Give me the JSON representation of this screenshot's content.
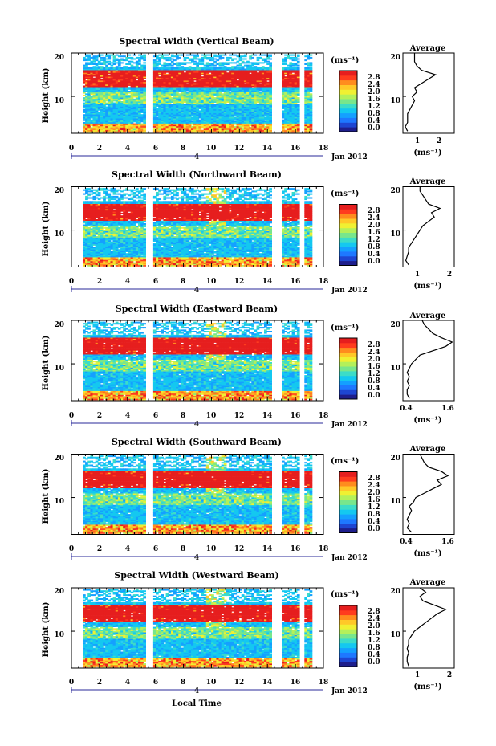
{
  "colors": {
    "scale": [
      "#1e1e8c",
      "#1e46d2",
      "#1e78ff",
      "#14a0ff",
      "#14c8f0",
      "#3cdcc8",
      "#78e68c",
      "#b4f05a",
      "#f0f032",
      "#ffc828",
      "#ff8c1e",
      "#ff3c1e",
      "#e61e1e"
    ],
    "gap": "#ffffff",
    "line": "#000000"
  },
  "shared": {
    "colorbar_unit": "(ms⁻¹)",
    "colorbar_ticks": [
      "2.8",
      "2.4",
      "2.0",
      "1.6",
      "1.2",
      "0.8",
      "0.4",
      "0.0"
    ],
    "x_ticks": [
      "0",
      "2",
      "4",
      "6",
      "8",
      "10",
      "12",
      "14",
      "16",
      "18"
    ],
    "y_label": "Height (km)",
    "avg_title": "Average",
    "avg_unit": "(ms⁻¹)",
    "date_day": "4",
    "date_label": "Jan 2012",
    "x_label": "Local Time"
  },
  "chart_data": [
    {
      "type": "heatmap",
      "title": "Spectral Width (Vertical Beam)",
      "ylabel": "Height (km)",
      "xlim": [
        0,
        18
      ],
      "ylim": [
        1.5,
        20
      ],
      "y_ticks": [
        "10",
        "20"
      ],
      "data_gaps_hours": [
        [
          5.3,
          5.7
        ],
        [
          14.3,
          14.9
        ],
        [
          16.3,
          16.6
        ]
      ],
      "data_end_hour": 17.1,
      "colorbar_range": [
        0.0,
        2.8
      ],
      "profile": {
        "type": "line",
        "title": "Average",
        "x_ticks": [
          "1",
          "2"
        ],
        "xlim": [
          0.4,
          2.6
        ],
        "height_km": [
          2,
          3,
          4,
          5,
          6,
          7,
          8,
          9,
          10,
          11,
          12,
          13,
          14,
          15,
          15.5,
          16,
          17,
          18,
          19,
          20
        ],
        "values": [
          0.6,
          0.5,
          0.6,
          0.6,
          0.6,
          0.7,
          0.8,
          0.9,
          0.8,
          1.0,
          0.9,
          1.2,
          1.5,
          1.8,
          1.5,
          1.2,
          1.0,
          0.9,
          0.9,
          0.9
        ]
      }
    },
    {
      "type": "heatmap",
      "title": "Spectral Width (Northward Beam)",
      "ylabel": "Height (km)",
      "xlim": [
        0,
        18
      ],
      "ylim": [
        1.5,
        20
      ],
      "y_ticks": [
        "10",
        "20"
      ],
      "data_gaps_hours": [
        [
          5.3,
          5.7
        ],
        [
          14.3,
          14.9
        ],
        [
          16.3,
          16.6
        ]
      ],
      "data_end_hour": 17.1,
      "colorbar_range": [
        0.0,
        2.8
      ],
      "profile": {
        "type": "line",
        "title": "Average",
        "x_ticks": [
          "1",
          "2"
        ],
        "xlim": [
          0.4,
          2.2
        ],
        "height_km": [
          2,
          3,
          4,
          5,
          6,
          7,
          8,
          9,
          10,
          11,
          12,
          13,
          14,
          15,
          16,
          17,
          18,
          19,
          20
        ],
        "values": [
          0.6,
          0.5,
          0.55,
          0.6,
          0.6,
          0.7,
          0.8,
          0.9,
          1.0,
          1.1,
          1.3,
          1.5,
          1.4,
          1.7,
          1.3,
          1.2,
          1.1,
          1.0,
          1.0
        ]
      }
    },
    {
      "type": "heatmap",
      "title": "Spectral Width (Eastward Beam)",
      "ylabel": "Height (km)",
      "xlim": [
        0,
        18
      ],
      "ylim": [
        1.5,
        20
      ],
      "y_ticks": [
        "10",
        "20"
      ],
      "data_gaps_hours": [
        [
          5.3,
          5.7
        ],
        [
          14.3,
          14.9
        ],
        [
          16.3,
          16.6
        ]
      ],
      "data_end_hour": 17.1,
      "colorbar_range": [
        0.0,
        2.8
      ],
      "profile": {
        "type": "line",
        "title": "Average",
        "x_ticks": [
          "0.4",
          "1.6"
        ],
        "xlim": [
          0.4,
          1.6
        ],
        "height_km": [
          2,
          3,
          4,
          5,
          6,
          7,
          8,
          9,
          10,
          11,
          12,
          13,
          14,
          15,
          16,
          17,
          18,
          19,
          20
        ],
        "values": [
          0.55,
          0.5,
          0.5,
          0.55,
          0.5,
          0.55,
          0.5,
          0.55,
          0.6,
          0.7,
          0.8,
          1.1,
          1.4,
          1.55,
          1.3,
          1.1,
          1.0,
          0.9,
          0.85
        ]
      }
    },
    {
      "type": "heatmap",
      "title": "Spectral Width (Southward Beam)",
      "ylabel": "Height (km)",
      "xlim": [
        0,
        18
      ],
      "ylim": [
        1.5,
        20
      ],
      "y_ticks": [
        "10",
        "20"
      ],
      "data_gaps_hours": [
        [
          5.3,
          5.7
        ],
        [
          14.3,
          14.9
        ],
        [
          16.3,
          16.6
        ]
      ],
      "data_end_hour": 17.1,
      "colorbar_range": [
        0.0,
        2.8
      ],
      "profile": {
        "type": "line",
        "title": "Average",
        "x_ticks": [
          "0.4",
          "1.6"
        ],
        "xlim": [
          0.4,
          1.6
        ],
        "height_km": [
          2,
          3,
          4,
          5,
          6,
          7,
          8,
          9,
          10,
          11,
          12,
          13,
          14,
          15,
          16,
          17,
          18,
          19,
          20
        ],
        "values": [
          0.6,
          0.5,
          0.55,
          0.5,
          0.55,
          0.6,
          0.55,
          0.65,
          0.7,
          0.9,
          1.1,
          1.3,
          1.2,
          1.45,
          1.3,
          1.0,
          0.9,
          0.85,
          0.8
        ]
      }
    },
    {
      "type": "heatmap",
      "title": "Spectral Width (Westward Beam)",
      "ylabel": "Height (km)",
      "xlim": [
        0,
        18
      ],
      "ylim": [
        1.5,
        20
      ],
      "y_ticks": [
        "10",
        "20"
      ],
      "data_gaps_hours": [
        [
          5.3,
          5.7
        ],
        [
          14.3,
          14.9
        ],
        [
          16.3,
          16.6
        ]
      ],
      "data_end_hour": 17.1,
      "colorbar_range": [
        0.0,
        2.8
      ],
      "profile": {
        "type": "line",
        "title": "Average",
        "x_ticks": [
          "1",
          "2"
        ],
        "xlim": [
          0.4,
          2.2
        ],
        "height_km": [
          2,
          3,
          4,
          5,
          6,
          7,
          8,
          9,
          10,
          11,
          12,
          13,
          14,
          15,
          16,
          17,
          18,
          19,
          20
        ],
        "values": [
          0.6,
          0.55,
          0.55,
          0.6,
          0.55,
          0.6,
          0.6,
          0.7,
          0.8,
          1.0,
          1.2,
          1.4,
          1.6,
          1.9,
          1.5,
          1.1,
          1.0,
          1.2,
          1.0
        ]
      }
    }
  ]
}
